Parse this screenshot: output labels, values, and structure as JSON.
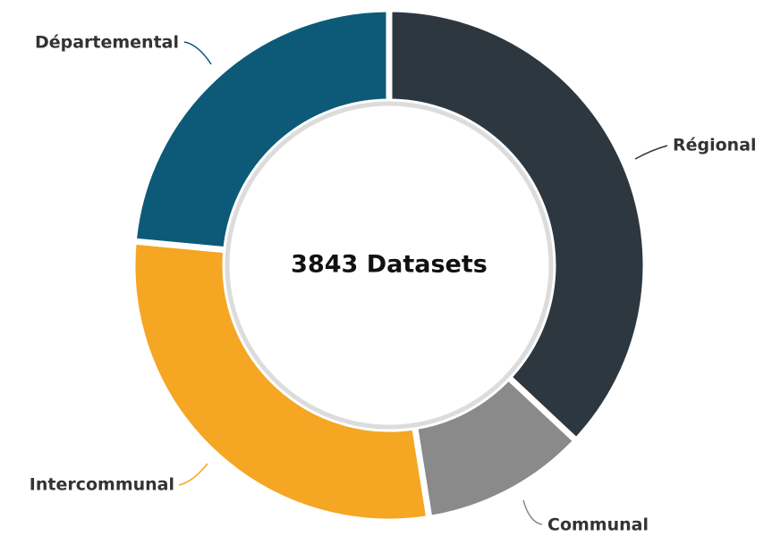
{
  "chart_data": {
    "type": "donut",
    "center_label": "3843 Datasets",
    "categories": [
      "Régional",
      "Communal",
      "Intercommunal",
      "Départemental"
    ],
    "values": [
      37,
      10.5,
      29,
      23.5
    ],
    "colors": [
      "#2d3740",
      "#8a8a8a",
      "#f5a623",
      "#0d5a78"
    ]
  }
}
